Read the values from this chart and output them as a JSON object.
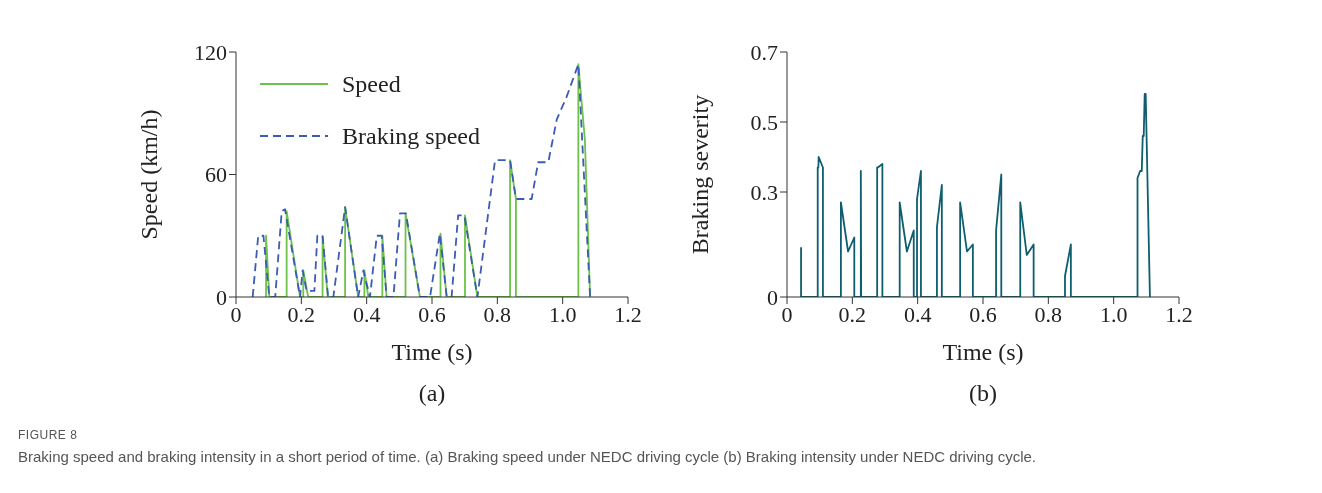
{
  "chart_data": [
    {
      "type": "line",
      "xlabel": "Time (s)",
      "ylabel": "Speed (km/h)",
      "xlim": [
        0,
        1.2
      ],
      "xticks": [
        0,
        0.2,
        0.4,
        0.6,
        0.8,
        {
          "value": 1,
          "label": "1.0"
        },
        1.2
      ],
      "ylim": [
        0,
        120
      ],
      "yticks": [
        0,
        60,
        120
      ],
      "legend": "top left",
      "marker": "none",
      "annotations": [
        "(a)",
        "FIGURE 8",
        "Braking speed and braking intensity in a short period of time. (a) Braking speed under NEDC driving cycle (b) Braking intensity under NEDC driving cycle."
      ],
      "series": [
        {
          "name": "Speed",
          "color": "#6cc24a",
          "line_style": "solid",
          "x": [
            0.092,
            0.092,
            0.102,
            0.155,
            0.155,
            0.196,
            0.206,
            0.206,
            0.221,
            0.265,
            0.265,
            0.281,
            0.334,
            0.334,
            0.374,
            0.393,
            0.393,
            0.405,
            0.448,
            0.448,
            0.461,
            0.519,
            0.519,
            0.563,
            0.626,
            0.626,
            0.645,
            0.701,
            0.701,
            0.739,
            0.839,
            0.839,
            0.857,
            0.857,
            1.048,
            1.048,
            1.068,
            1.084
          ],
          "values": [
            0,
            30,
            0,
            0,
            42,
            0,
            0,
            13,
            0,
            0,
            30,
            0,
            0,
            44,
            0,
            0,
            13,
            0,
            0,
            30,
            0,
            0,
            41,
            0,
            0,
            31,
            0,
            0,
            40,
            0,
            0,
            67,
            48,
            0,
            0,
            114,
            77,
            0
          ]
        },
        {
          "name": "Braking speed",
          "color": "#3b5bb5",
          "line_style": "dashed",
          "x": [
            0.051,
            0.068,
            0.084,
            0.102,
            0.12,
            0.14,
            0.15,
            0.196,
            0.204,
            0.216,
            0.224,
            0.24,
            0.249,
            0.265,
            0.282,
            0.298,
            0.334,
            0.374,
            0.39,
            0.41,
            0.431,
            0.446,
            0.461,
            0.482,
            0.502,
            0.52,
            0.563,
            0.594,
            0.624,
            0.645,
            0.66,
            0.68,
            0.699,
            0.739,
            0.793,
            0.839,
            0.857,
            0.905,
            0.925,
            0.956,
            0.982,
            1.012,
            1.048,
            1.084
          ],
          "values": [
            0,
            30,
            30,
            0,
            0,
            42,
            43,
            0,
            13,
            3,
            3,
            3,
            30,
            30,
            0,
            0,
            44,
            0,
            13,
            0,
            30,
            30,
            0,
            0,
            41,
            41,
            0,
            0,
            31,
            0,
            0,
            40,
            40,
            0,
            67,
            67,
            48,
            48,
            66,
            66,
            87,
            98,
            114,
            0
          ]
        }
      ]
    },
    {
      "type": "line",
      "xlabel": "Time (s)",
      "ylabel": "Braking severity",
      "xlim": [
        0,
        1.2
      ],
      "xticks": [
        0,
        0.2,
        0.4,
        0.6,
        0.8,
        {
          "value": 1,
          "label": "1.0"
        },
        1.2
      ],
      "ylim": [
        0,
        0.7
      ],
      "yticks": [
        0,
        0.3,
        0.5,
        0.7
      ],
      "marker": "none",
      "annotations": [
        "(b)"
      ],
      "series": [
        {
          "color": "#0e5e6f",
          "line_style": "solid",
          "x": [
            0.043,
            0.043,
            0.043,
            0.094,
            0.094,
            0.096,
            0.097,
            0.11,
            0.11,
            0.165,
            0.165,
            0.187,
            0.206,
            0.206,
            0.226,
            0.226,
            0.227,
            0.276,
            0.276,
            0.278,
            0.292,
            0.292,
            0.345,
            0.345,
            0.367,
            0.388,
            0.388,
            0.398,
            0.398,
            0.41,
            0.41,
            0.459,
            0.459,
            0.474,
            0.474,
            0.53,
            0.53,
            0.551,
            0.569,
            0.569,
            0.64,
            0.64,
            0.656,
            0.656,
            0.714,
            0.714,
            0.734,
            0.755,
            0.755,
            0.851,
            0.851,
            0.869,
            0.869,
            1.073,
            1.073,
            1.081,
            1.086,
            1.089,
            1.092,
            1.095,
            1.098,
            1.111
          ],
          "values": [
            0,
            0.14,
            0,
            0,
            0.37,
            0.37,
            0.4,
            0.37,
            0,
            0,
            0.27,
            0.13,
            0.17,
            0,
            0,
            0.36,
            0,
            0,
            0.37,
            0.37,
            0.38,
            0,
            0,
            0.27,
            0.13,
            0.19,
            0,
            0,
            0.28,
            0.36,
            0,
            0,
            0.2,
            0.32,
            0,
            0,
            0.27,
            0.13,
            0.15,
            0,
            0,
            0.19,
            0.35,
            0,
            0,
            0.27,
            0.12,
            0.15,
            0,
            0,
            0.06,
            0.15,
            0,
            0,
            0.34,
            0.36,
            0.36,
            0.46,
            0.46,
            0.58,
            0.58,
            0
          ]
        }
      ]
    }
  ]
}
